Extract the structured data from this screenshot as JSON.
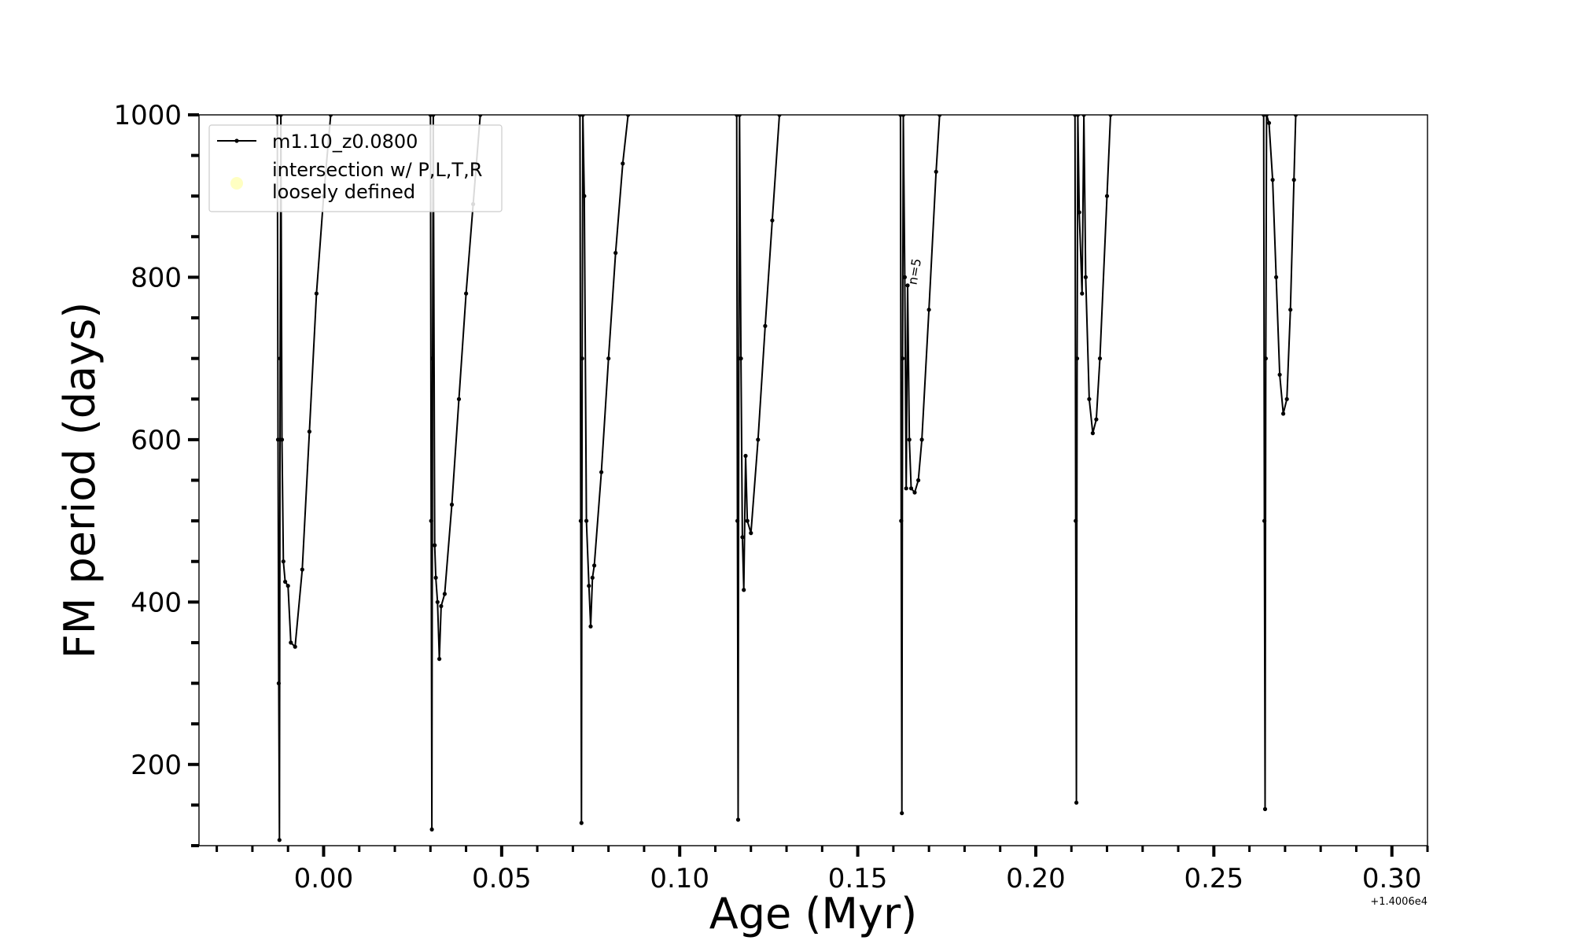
{
  "chart_data": {
    "type": "line",
    "xlabel": "Age (Myr)",
    "ylabel": "FM period (days)",
    "x_offset_label": "+1.4006e4",
    "xlim": [
      -0.035,
      0.31
    ],
    "ylim": [
      100,
      1000
    ],
    "xticks": [
      0.0,
      0.05,
      0.1,
      0.15,
      0.2,
      0.25,
      0.3
    ],
    "xtick_labels": [
      "0.00",
      "0.05",
      "0.10",
      "0.15",
      "0.20",
      "0.25",
      "0.30"
    ],
    "yticks": [
      200,
      400,
      600,
      800,
      1000
    ],
    "ytick_labels": [
      "200",
      "400",
      "600",
      "800",
      "1000"
    ],
    "grid": false,
    "legend": {
      "placement": "upper-left",
      "entries": [
        {
          "label": "m1.10_z0.0800",
          "kind": "line-marker",
          "color": "#000000"
        },
        {
          "label": "intersection w/ P,L,T,R\nloosely defined",
          "kind": "circle",
          "color": "#ffff99"
        }
      ]
    },
    "annotations": [
      {
        "text": "n=5",
        "x": 0.1665,
        "y": 790,
        "rotation": -80
      }
    ],
    "series": [
      {
        "name": "m1.10_z0.0800",
        "color": "#000000",
        "segments": [
          {
            "x": [
              -0.013,
              -0.0128,
              -0.0126,
              -0.0124,
              -0.0122,
              -0.012,
              -0.0117,
              -0.0113,
              -0.0108,
              -0.01,
              -0.0092,
              -0.008,
              -0.006,
              -0.004,
              -0.002,
              0.0,
              0.002
            ],
            "y": [
              1000,
              600,
              300,
              107,
              700,
              1000,
              600,
              450,
              425,
              420,
              350,
              345,
              440,
              610,
              780,
              900,
              1000
            ]
          },
          {
            "x": [
              0.03,
              0.0302,
              0.0304,
              0.0306,
              0.0308,
              0.0312,
              0.0315,
              0.032,
              0.0325,
              0.033,
              0.034,
              0.036,
              0.038,
              0.04,
              0.042,
              0.044
            ],
            "y": [
              1000,
              500,
              120,
              700,
              1000,
              470,
              430,
              400,
              330,
              395,
              410,
              520,
              650,
              780,
              890,
              1000
            ]
          },
          {
            "x": [
              0.072,
              0.0722,
              0.0724,
              0.0726,
              0.0728,
              0.0732,
              0.0738,
              0.0745,
              0.075,
              0.0755,
              0.076,
              0.078,
              0.08,
              0.082,
              0.084,
              0.0855
            ],
            "y": [
              1000,
              500,
              128,
              700,
              1000,
              900,
              500,
              420,
              370,
              430,
              445,
              560,
              700,
              830,
              940,
              1000
            ]
          },
          {
            "x": [
              0.116,
              0.1162,
              0.1164,
              0.1166,
              0.1168,
              0.1172,
              0.1176,
              0.118,
              0.1185,
              0.119,
              0.12,
              0.122,
              0.124,
              0.126,
              0.128
            ],
            "y": [
              1000,
              500,
              132,
              700,
              1000,
              700,
              480,
              415,
              580,
              500,
              485,
              600,
              740,
              870,
              1000
            ]
          },
          {
            "x": [
              0.162,
              0.1622,
              0.1624,
              0.1626,
              0.1628,
              0.1632,
              0.1636,
              0.164,
              0.1645,
              0.165,
              0.166,
              0.167,
              0.168,
              0.17,
              0.172,
              0.173
            ],
            "y": [
              1000,
              500,
              140,
              700,
              1000,
              800,
              540,
              790,
              600,
              540,
              535,
              550,
              600,
              760,
              930,
              1000
            ]
          },
          {
            "x": [
              0.211,
              0.2112,
              0.2114,
              0.2116,
              0.2118,
              0.2122,
              0.213,
              0.2135,
              0.214,
              0.215,
              0.216,
              0.217,
              0.218,
              0.22,
              0.221
            ],
            "y": [
              1000,
              500,
              153,
              700,
              1000,
              880,
              780,
              1000,
              800,
              650,
              608,
              625,
              700,
              900,
              1000
            ]
          },
          {
            "x": [
              0.264,
              0.2642,
              0.2644,
              0.2646,
              0.2648,
              0.2655,
              0.2665,
              0.2675,
              0.2685,
              0.2695,
              0.2705,
              0.2715,
              0.2725,
              0.273
            ],
            "y": [
              1000,
              500,
              145,
              700,
              1000,
              990,
              920,
              800,
              680,
              632,
              650,
              760,
              920,
              1000
            ]
          }
        ]
      }
    ]
  }
}
